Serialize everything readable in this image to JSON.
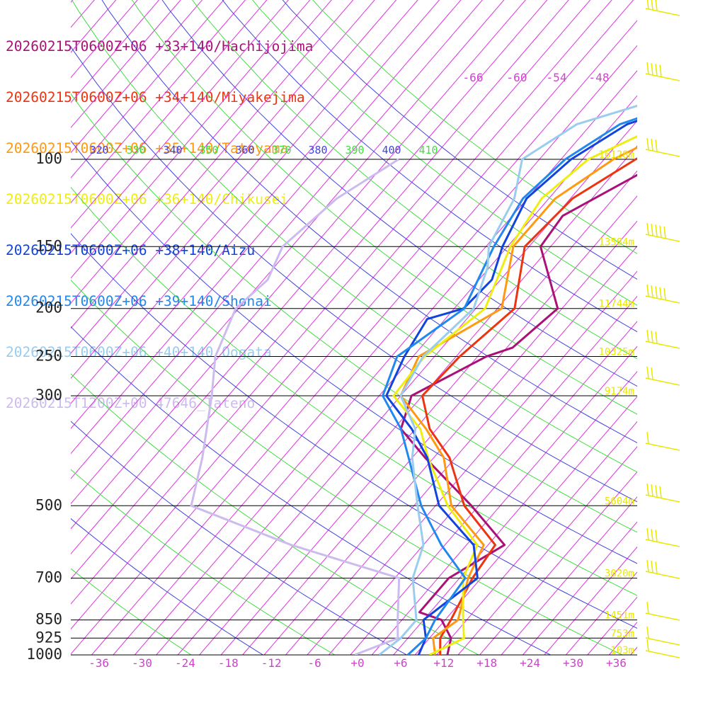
{
  "legend": [
    {
      "label": "20260215T0600Z+06 +33+140/Hachijojima",
      "color": "#aa1177"
    },
    {
      "label": "20260215T0600Z+06 +34+140/Miyakejima",
      "color": "#ee3311"
    },
    {
      "label": "20260215T0600Z+06 +35+140/Tateyama",
      "color": "#ff9911"
    },
    {
      "label": "20260215T0600Z+06 +36+140/Chikusei",
      "color": "#eeee11"
    },
    {
      "label": "20260215T0600Z+06 +38+140/Aizu",
      "color": "#1144dd"
    },
    {
      "label": "20260215T0600Z+06 +39+140/Shonai",
      "color": "#2288ee"
    },
    {
      "label": "20260215T0600Z+06 +40+140/Oogata",
      "color": "#99ccee"
    },
    {
      "label": "20260215T1200Z+00 47646_Tateno",
      "color": "#ccbbee"
    }
  ],
  "chart_data": {
    "type": "line",
    "subtype": "skew-T log-P",
    "pressure_ticks": [
      "100",
      "150",
      "200",
      "250",
      "300",
      "500",
      "700",
      "850",
      "925",
      "1000"
    ],
    "temp_ticks": [
      "-36",
      "-30",
      "-24",
      "-18",
      "-12",
      "-6",
      "+0",
      "+6",
      "+12",
      "+18",
      "+24",
      "+30",
      "+36"
    ],
    "upper_temp_ticks": [
      "-66",
      "-60",
      "-54",
      "-48"
    ],
    "theta_labels": [
      "320",
      "330",
      "340",
      "350",
      "360",
      "370",
      "380",
      "390",
      "400",
      "410"
    ],
    "height_labels": [
      "16128m",
      "13584m",
      "11744m",
      "10325m",
      "9174m",
      "5604m",
      "3020m",
      "1451m",
      "753m",
      "103m"
    ],
    "colors": {
      "isotherm": "#dd33dd",
      "theta_a": "#4444dd",
      "theta_b": "#44dd44",
      "height": "#e8e800",
      "barb": "#e8e800",
      "isobar": "#000000"
    },
    "series": [
      {
        "name": "20260215T0600Z+06 +33+140/Hachijojima",
        "color": "#aa1177",
        "points": [
          [
            1000,
            12.5
          ],
          [
            925,
            11.0
          ],
          [
            850,
            7.5
          ],
          [
            820,
            3.5
          ],
          [
            700,
            3.5
          ],
          [
            600,
            7.3
          ],
          [
            500,
            -2.0
          ],
          [
            400,
            -14.2
          ],
          [
            350,
            -21.0
          ],
          [
            300,
            -23.5
          ],
          [
            250,
            -17.8
          ],
          [
            240,
            -15.2
          ],
          [
            200,
            -13.6
          ],
          [
            150,
            -23.4
          ],
          [
            130,
            -24.0
          ],
          [
            100,
            -16.4
          ],
          [
            85,
            -11.0
          ],
          [
            70,
            -1.5
          ],
          [
            60,
            4.0
          ],
          [
            50,
            10.0
          ],
          [
            40,
            21.0
          ]
        ]
      },
      {
        "name": "20260215T0600Z+06 +34+140/Miyakejima",
        "color": "#ee3311",
        "points": [
          [
            1000,
            11.5
          ],
          [
            925,
            9.5
          ],
          [
            850,
            8.8
          ],
          [
            700,
            6.8
          ],
          [
            600,
            6.0
          ],
          [
            500,
            -3.0
          ],
          [
            400,
            -10.8
          ],
          [
            350,
            -17.0
          ],
          [
            300,
            -22.0
          ],
          [
            250,
            -21.5
          ],
          [
            200,
            -19.6
          ],
          [
            150,
            -25.6
          ],
          [
            120,
            -24.7
          ],
          [
            100,
            -20.6
          ],
          [
            85,
            -15.5
          ],
          [
            70,
            -3.5
          ],
          [
            60,
            2.0
          ],
          [
            50,
            8.0
          ],
          [
            40,
            20.0
          ]
        ]
      },
      {
        "name": "20260215T0600Z+06 +35+140/Tateyama",
        "color": "#ff9911",
        "points": [
          [
            1000,
            10.8
          ],
          [
            925,
            8.5
          ],
          [
            850,
            9.8
          ],
          [
            700,
            6.2
          ],
          [
            600,
            4.4
          ],
          [
            500,
            -4.8
          ],
          [
            400,
            -11.6
          ],
          [
            350,
            -17.5
          ],
          [
            300,
            -25.0
          ],
          [
            250,
            -27.2
          ],
          [
            200,
            -21.4
          ],
          [
            150,
            -27.2
          ],
          [
            120,
            -27.1
          ],
          [
            100,
            -23.7
          ],
          [
            85,
            -18.0
          ],
          [
            70,
            -6.5
          ],
          [
            60,
            -0.5
          ],
          [
            50,
            6.0
          ],
          [
            40,
            18.0
          ]
        ]
      },
      {
        "name": "20260215T0600Z+06 +36+140/Chikusei",
        "color": "#eeee11",
        "points": [
          [
            1000,
            10.0
          ],
          [
            925,
            12.8
          ],
          [
            850,
            10.5
          ],
          [
            700,
            5.5
          ],
          [
            600,
            3.5
          ],
          [
            500,
            -5.3
          ],
          [
            400,
            -13.8
          ],
          [
            350,
            -18.3
          ],
          [
            300,
            -26.0
          ],
          [
            250,
            -26.4
          ],
          [
            200,
            -23.7
          ],
          [
            150,
            -27.6
          ],
          [
            120,
            -29.0
          ],
          [
            100,
            -27.2
          ],
          [
            85,
            -21.0
          ],
          [
            70,
            -9.0
          ],
          [
            60,
            -2.5
          ],
          [
            50,
            4.5
          ],
          [
            40,
            17.0
          ]
        ]
      },
      {
        "name": "20260215T0600Z+06 +38+140/Aizu",
        "color": "#1144dd",
        "points": [
          [
            1000,
            8.5
          ],
          [
            925,
            7.5
          ],
          [
            850,
            5.0
          ],
          [
            700,
            7.5
          ],
          [
            600,
            3.0
          ],
          [
            500,
            -6.5
          ],
          [
            400,
            -13.9
          ],
          [
            350,
            -19.5
          ],
          [
            300,
            -27.0
          ],
          [
            250,
            -29.2
          ],
          [
            210,
            -30.5
          ],
          [
            200,
            -26.7
          ],
          [
            175,
            -26.2
          ],
          [
            150,
            -28.7
          ],
          [
            120,
            -31.1
          ],
          [
            100,
            -29.6
          ],
          [
            85,
            -26.0
          ],
          [
            70,
            -14.0
          ],
          [
            60,
            -6.0
          ],
          [
            50,
            2.5
          ],
          [
            40,
            15.0
          ]
        ]
      },
      {
        "name": "20260215T0600Z+06 +39+140/Shonai",
        "color": "#2288ee",
        "points": [
          [
            1000,
            7.0
          ],
          [
            925,
            7.5
          ],
          [
            850,
            6.6
          ],
          [
            700,
            5.8
          ],
          [
            600,
            -1.5
          ],
          [
            500,
            -9.0
          ],
          [
            400,
            -16.5
          ],
          [
            350,
            -21.0
          ],
          [
            300,
            -27.5
          ],
          [
            250,
            -30.2
          ],
          [
            200,
            -26.6
          ],
          [
            150,
            -29.9
          ],
          [
            120,
            -31.6
          ],
          [
            100,
            -30.4
          ],
          [
            85,
            -27.0
          ],
          [
            70,
            -15.0
          ],
          [
            60,
            -7.0
          ],
          [
            50,
            1.5
          ],
          [
            40,
            14.0
          ]
        ]
      },
      {
        "name": "20260215T0600Z+06 +40+140/Oogata",
        "color": "#99ccee",
        "points": [
          [
            1000,
            3.0
          ],
          [
            925,
            4.0
          ],
          [
            850,
            4.0
          ],
          [
            700,
            -1.5
          ],
          [
            600,
            -4.0
          ],
          [
            500,
            -9.5
          ],
          [
            400,
            -16.0
          ],
          [
            350,
            -19.0
          ],
          [
            300,
            -25.0
          ],
          [
            250,
            -26.6
          ],
          [
            200,
            -25.3
          ],
          [
            165,
            -28.3
          ],
          [
            150,
            -30.6
          ],
          [
            120,
            -32.8
          ],
          [
            100,
            -36.4
          ],
          [
            85,
            -33.0
          ],
          [
            70,
            -19.0
          ],
          [
            60,
            -10.0
          ],
          [
            50,
            -1.5
          ],
          [
            40,
            12.0
          ]
        ]
      },
      {
        "name": "20260215T1200Z+00 47646_Tateno",
        "color": "#ccbbee",
        "points": [
          [
            1000,
            -0.4
          ],
          [
            925,
            3.6
          ],
          [
            850,
            1.4
          ],
          [
            700,
            -3.4
          ],
          [
            600,
            -22.4
          ],
          [
            500,
            -41.0
          ],
          [
            400,
            -45.2
          ],
          [
            300,
            -51.3
          ],
          [
            250,
            -55.5
          ],
          [
            200,
            -58.4
          ],
          [
            175,
            -57.4
          ],
          [
            150,
            -59.3
          ],
          [
            120,
            -57.5
          ],
          [
            100,
            -53.6
          ]
        ]
      }
    ]
  }
}
